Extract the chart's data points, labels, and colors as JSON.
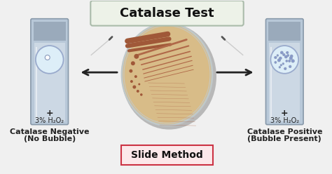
{
  "title": "Catalase Test",
  "subtitle": "Slide Method",
  "left_label1": "Catalase Negative",
  "left_label2": "(No Bubble)",
  "right_label1": "Catalase Positive",
  "right_label2": "(Bubble Present)",
  "h2o2_label": "3% H₂O₂",
  "plus_label": "+",
  "bg_color": "#f0f0f0",
  "title_bg": "#edf2e8",
  "title_border": "#aabbaa",
  "subtitle_bg": "#fce8ea",
  "subtitle_border": "#cc3344",
  "tube_body": "#b8c8d8",
  "tube_liquid": "#ccd8e4",
  "tube_cap": "#9aaabb",
  "tube_edge": "#8899aa",
  "petri_fill": "#d8bc88",
  "petri_border": "#c0c0c0",
  "petri_shadow": "#b8b8b8",
  "arrow_color": "#222222",
  "bacteria_heavy": "#a05838",
  "bacteria_thin": "#b06848",
  "bubble_fill": "#ddeef8",
  "bubble_edge": "#8899bb",
  "slide_fill": "#ddeef8",
  "slide_edge": "#99aacc",
  "needle_color": "#444444",
  "text_color": "#222222",
  "text_color2": "#111111"
}
